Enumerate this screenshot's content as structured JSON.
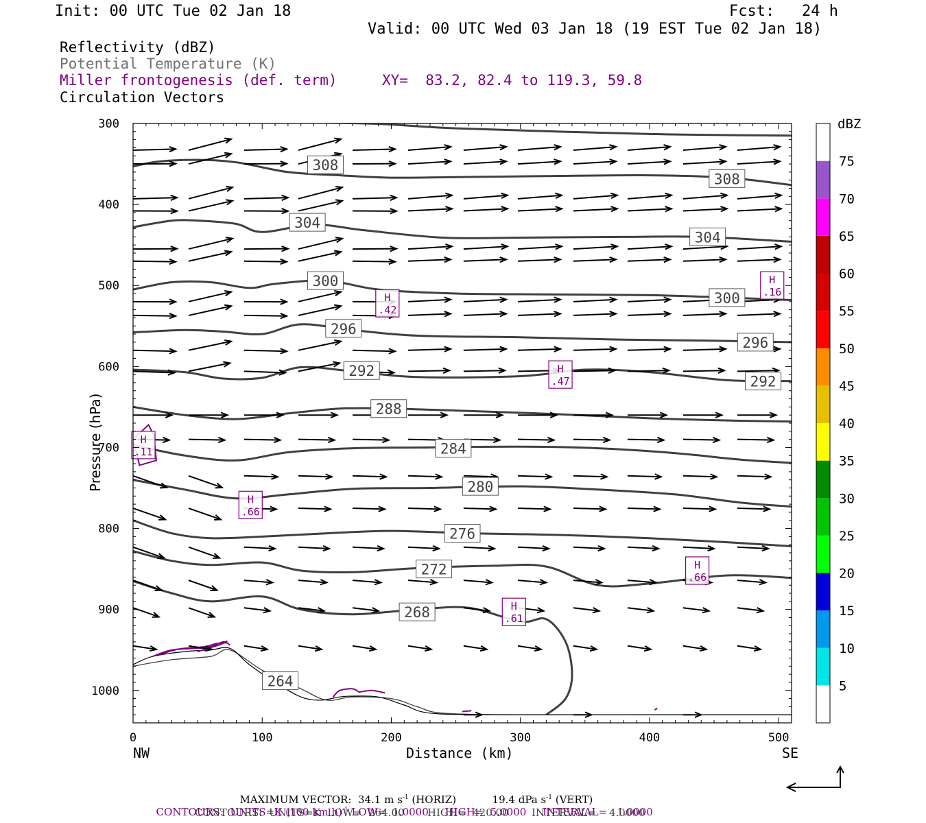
{
  "header": {
    "init": "Init: 00 UTC Tue 02 Jan 18",
    "fcst": "Fcst:   24 h",
    "valid": "Valid: 00 UTC Wed 03 Jan 18 (19 EST Tue 02 Jan 18)"
  },
  "legend": {
    "reflectivity": "Reflectivity (dBZ)",
    "theta": "Potential Temperature (K)",
    "miller": "Miller frontogenesis (def. term)",
    "xy": "XY=  83.2, 82.4 to 119.3, 59.8",
    "vectors": "Circulation Vectors"
  },
  "colors": {
    "theta_contour": "#404040",
    "frontogenesis": "#800080",
    "vector": "#000000"
  },
  "chart_data": {
    "type": "line",
    "title": "",
    "xlabel": "Distance (km)",
    "ylabel": "Pressure (hPa)",
    "xlim": [
      0,
      510
    ],
    "ylim": [
      1040,
      300
    ],
    "y_scale": "linear",
    "x_ticks": [
      0,
      100,
      200,
      300,
      400,
      500
    ],
    "x_tick_labels": [
      "0",
      "100",
      "200",
      "300",
      "400",
      "500"
    ],
    "y_ticks": [
      300,
      400,
      500,
      600,
      700,
      800,
      900,
      1000
    ],
    "y_tick_labels": [
      "300",
      "400",
      "500",
      "600",
      "700",
      "800",
      "900",
      "1000"
    ],
    "x_end_labels": {
      "left": "NW",
      "right": "SE"
    },
    "theta_contours": [
      {
        "level": 308,
        "label": "308",
        "label_points": [
          [
            149,
            351
          ],
          [
            460,
            368
          ]
        ],
        "x": [
          0,
          20,
          50,
          80,
          120,
          160,
          200,
          260,
          320,
          400,
          460,
          510
        ],
        "p": [
          353,
          347,
          345,
          348,
          360,
          364,
          367,
          366,
          365,
          364,
          367,
          376
        ]
      },
      {
        "level": 304,
        "label": "304",
        "label_points": [
          [
            135,
            422
          ],
          [
            445,
            440
          ]
        ],
        "x": [
          0,
          30,
          50,
          80,
          100,
          140,
          180,
          240,
          300,
          380,
          440,
          510
        ],
        "p": [
          428,
          420,
          420,
          424,
          434,
          425,
          432,
          441,
          441,
          440,
          440,
          446
        ]
      },
      {
        "level": 300,
        "label": "300",
        "label_points": [
          [
            149,
            494
          ],
          [
            460,
            515
          ]
        ],
        "x": [
          0,
          30,
          60,
          90,
          110,
          150,
          190,
          250,
          320,
          400,
          460,
          510
        ],
        "p": [
          505,
          496,
          496,
          503,
          498,
          494,
          505,
          510,
          511,
          512,
          515,
          518
        ]
      },
      {
        "level": 296,
        "label": "296",
        "label_points": [
          [
            163,
            553
          ],
          [
            482,
            570
          ]
        ],
        "x": [
          0,
          40,
          70,
          100,
          130,
          170,
          220,
          300,
          380,
          440,
          510
        ],
        "p": [
          558,
          555,
          557,
          560,
          548,
          555,
          562,
          564,
          567,
          568,
          570
        ]
      },
      {
        "level": 292,
        "label": "292",
        "label_points": [
          [
            177,
            605
          ],
          [
            488,
            618
          ]
        ],
        "x": [
          0,
          40,
          70,
          100,
          130,
          170,
          220,
          300,
          350,
          400,
          460,
          510
        ],
        "p": [
          604,
          607,
          615,
          614,
          601,
          606,
          613,
          612,
          604,
          607,
          617,
          618
        ]
      },
      {
        "level": 288,
        "label": "288",
        "label_points": [
          [
            198,
            652
          ]
        ],
        "x": [
          0,
          40,
          80,
          120,
          160,
          200,
          260,
          330,
          400,
          470,
          510
        ],
        "p": [
          650,
          660,
          665,
          658,
          652,
          652,
          655,
          659,
          664,
          667,
          668
        ]
      },
      {
        "level": 284,
        "label": "284",
        "label_points": [
          [
            248,
            701
          ]
        ],
        "x": [
          0,
          40,
          80,
          120,
          170,
          230,
          300,
          360,
          420,
          470,
          510
        ],
        "p": [
          697,
          710,
          716,
          706,
          701,
          700,
          699,
          701,
          707,
          715,
          719
        ]
      },
      {
        "level": 280,
        "label": "280",
        "label_points": [
          [
            269,
            748
          ]
        ],
        "x": [
          0,
          40,
          80,
          120,
          170,
          230,
          300,
          360,
          420,
          470,
          510
        ],
        "p": [
          740,
          752,
          763,
          758,
          751,
          750,
          748,
          752,
          758,
          768,
          773
        ]
      },
      {
        "level": 276,
        "label": "276",
        "label_points": [
          [
            255,
            806
          ]
        ],
        "x": [
          0,
          30,
          60,
          100,
          150,
          200,
          260,
          330,
          400,
          460,
          510
        ],
        "p": [
          790,
          806,
          812,
          810,
          806,
          803,
          806,
          808,
          812,
          817,
          822
        ]
      },
      {
        "level": 272,
        "label": "272",
        "label_points": [
          [
            233,
            850
          ]
        ],
        "x": [
          0,
          30,
          60,
          100,
          130,
          170,
          220,
          280,
          320,
          360,
          400,
          460,
          510
        ],
        "p": [
          828,
          840,
          845,
          842,
          852,
          854,
          849,
          846,
          847,
          870,
          868,
          858,
          861
        ]
      },
      {
        "level": 268,
        "label": "268",
        "label_points": [
          [
            220,
            903
          ]
        ],
        "x": [
          0,
          30,
          60,
          100,
          130,
          170,
          220,
          260,
          300,
          320,
          335,
          340,
          335,
          320
        ],
        "p": [
          865,
          880,
          890,
          884,
          900,
          906,
          900,
          898,
          915,
          912,
          940,
          980,
          1010,
          1030
        ]
      },
      {
        "level": 264,
        "label": "264",
        "label_points": [
          [
            114,
            988
          ]
        ],
        "x": [
          0,
          30,
          60,
          75,
          100,
          130,
          150,
          170,
          200,
          220,
          240,
          300,
          400,
          510
        ],
        "p": [
          970,
          962,
          958,
          950,
          975,
          998,
          1012,
          1008,
          1010,
          1020,
          1028,
          1030,
          1030,
          1030
        ]
      }
    ],
    "terrain": {
      "x": [
        0,
        15,
        40,
        60,
        75,
        90,
        110,
        130,
        145,
        160,
        170,
        190,
        210,
        230,
        280,
        350,
        430,
        510
      ],
      "p": [
        968,
        958,
        952,
        950,
        948,
        968,
        990,
        1008,
        1012,
        1008,
        1007,
        1008,
        1018,
        1028,
        1030,
        1030,
        1030,
        1030
      ]
    },
    "frontogenesis_maxima": [
      {
        "label": "H",
        "value": ".42",
        "x": 197,
        "p": 522
      },
      {
        "label": "H",
        "value": ".16",
        "x": 495,
        "p": 500
      },
      {
        "label": "H",
        "value": ".47",
        "x": 331,
        "p": 610
      },
      {
        "label": "H",
        "value": ".11",
        "x": 8,
        "p": 697
      },
      {
        "label": "H",
        "value": ".66",
        "x": 91,
        "p": 771
      },
      {
        "label": "H",
        "value": ".66",
        "x": 437,
        "p": 852
      },
      {
        "label": "H",
        "value": ".61",
        "x": 295,
        "p": 903
      }
    ],
    "vector_rows": [
      {
        "p": 333,
        "slope": -0.08,
        "len": 33
      },
      {
        "p": 350,
        "slope": -0.06,
        "len": 33
      },
      {
        "p": 393,
        "slope": -0.08,
        "len": 34
      },
      {
        "p": 408,
        "slope": -0.05,
        "len": 34
      },
      {
        "p": 455,
        "slope": -0.06,
        "len": 34
      },
      {
        "p": 470,
        "slope": -0.04,
        "len": 33
      },
      {
        "p": 520,
        "slope": -0.05,
        "len": 33
      },
      {
        "p": 537,
        "slope": -0.04,
        "len": 33
      },
      {
        "p": 580,
        "slope": -0.03,
        "len": 33
      },
      {
        "p": 606,
        "slope": -0.02,
        "len": 32
      },
      {
        "p": 660,
        "slope": 0.0,
        "len": 30
      },
      {
        "p": 690,
        "slope": 0.02,
        "len": 28
      },
      {
        "p": 735,
        "slope": 0.03,
        "len": 26
      },
      {
        "p": 775,
        "slope": 0.03,
        "len": 25
      },
      {
        "p": 823,
        "slope": 0.05,
        "len": 24
      },
      {
        "p": 864,
        "slope": 0.08,
        "len": 22
      },
      {
        "p": 898,
        "slope": 0.12,
        "len": 20
      },
      {
        "p": 945,
        "slope": 0.15,
        "len": 18
      },
      {
        "p": 1030,
        "slope": 0.0,
        "len": 14
      }
    ]
  },
  "colorbar": {
    "title": "dBZ",
    "levels": [
      "5",
      "10",
      "15",
      "20",
      "25",
      "30",
      "35",
      "40",
      "45",
      "50",
      "55",
      "60",
      "65",
      "70",
      "75"
    ],
    "colors": [
      "#ffffff",
      "#00e5e5",
      "#0099ee",
      "#0000dd",
      "#00ff00",
      "#00c400",
      "#008a00",
      "#ffff00",
      "#e8c000",
      "#ff8c00",
      "#ff0000",
      "#d60000",
      "#c00000",
      "#ff00ff",
      "#9955cc",
      "#ffffff"
    ]
  },
  "footer": {
    "max_vector_label": "MAXIMUM VECTOR:",
    "max_vector_horiz": "34.1 m s",
    "max_vector_horiz_exp": "-1",
    "max_vector_horiz_unit": "(HORIZ)",
    "max_vector_vert": "19.4 dPa s",
    "max_vector_vert_exp": "-1",
    "max_vector_vert_unit": "(VERT)",
    "contours1_prefix": "CONTOURS:  UNITS=K (100 km h)",
    "contours1_exp": "-1",
    "contours1_rest": " LOW=  1.0000     HIGH=  5.0000     INTERVAL=   1.0000",
    "contours2": "CONTOURS:  UNITS=K  LOW=  264.00       HIGH=  420.00       INTERVAL=    4.0000"
  }
}
